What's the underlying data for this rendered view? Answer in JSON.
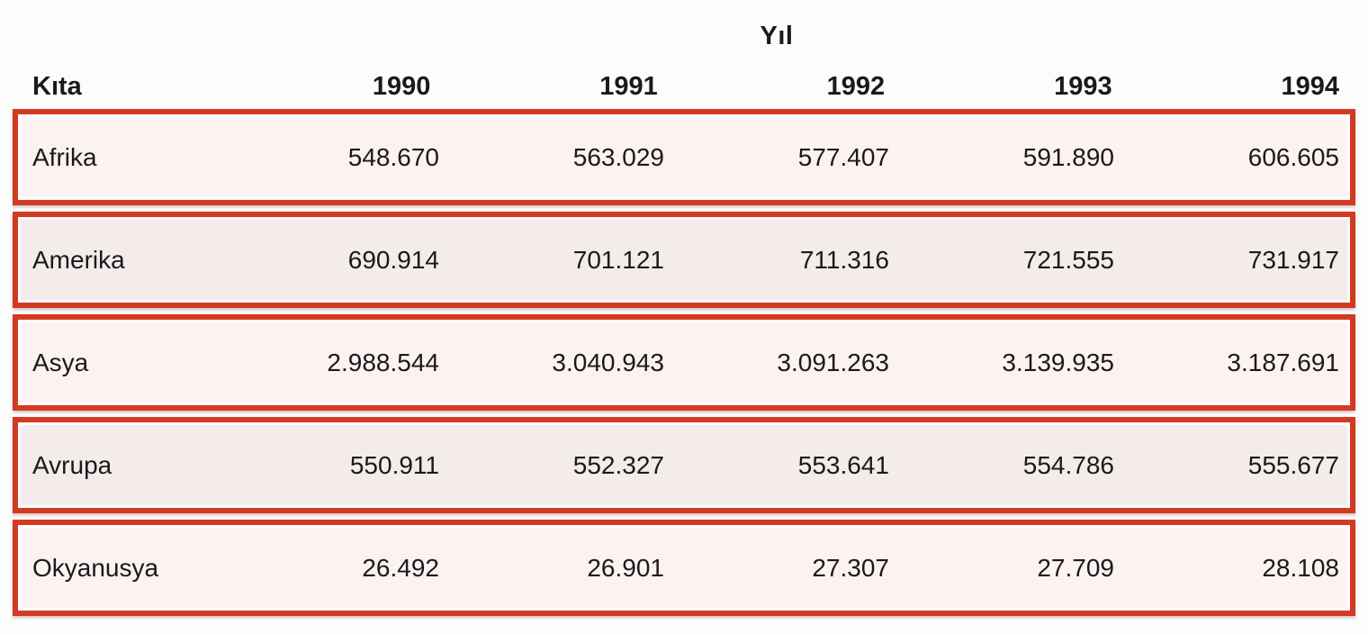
{
  "title": "Yıl",
  "colors": {
    "border_red": "#d33a22",
    "row_odd_bg": "#fcf2f1",
    "row_even_bg": "#f4ebeb",
    "text": "#1a1a1a",
    "page_bg": "#fdfcfc"
  },
  "table": {
    "label_header": "Kıta",
    "year_headers": [
      "1990",
      "1991",
      "1992",
      "1993",
      "1994"
    ],
    "rows": [
      {
        "label": "Afrika",
        "values": [
          "548.670",
          "563.029",
          "577.407",
          "591.890",
          "606.605"
        ]
      },
      {
        "label": "Amerika",
        "values": [
          "690.914",
          "701.121",
          "711.316",
          "721.555",
          "731.917"
        ]
      },
      {
        "label": "Asya",
        "values": [
          "2.988.544",
          "3.040.943",
          "3.091.263",
          "3.139.935",
          "3.187.691"
        ]
      },
      {
        "label": "Avrupa",
        "values": [
          "550.911",
          "552.327",
          "553.641",
          "554.786",
          "555.677"
        ]
      },
      {
        "label": "Okyanusya",
        "values": [
          "26.492",
          "26.901",
          "27.307",
          "27.709",
          "28.108"
        ]
      }
    ]
  },
  "chart_data": {
    "type": "table",
    "title": "Yıl",
    "row_header_label": "Kıta",
    "columns": [
      "1990",
      "1991",
      "1992",
      "1993",
      "1994"
    ],
    "rows": [
      "Afrika",
      "Amerika",
      "Asya",
      "Avrupa",
      "Okyanusya"
    ],
    "values": [
      [
        548670,
        563029,
        577407,
        591890,
        606605
      ],
      [
        690914,
        701121,
        711316,
        721555,
        731917
      ],
      [
        2988544,
        3040943,
        3091263,
        3139935,
        3187691
      ],
      [
        550911,
        552327,
        553641,
        554786,
        555677
      ],
      [
        26492,
        26901,
        27307,
        27709,
        28108
      ]
    ],
    "number_format": "thousands separated by dots (Turkish locale)"
  }
}
